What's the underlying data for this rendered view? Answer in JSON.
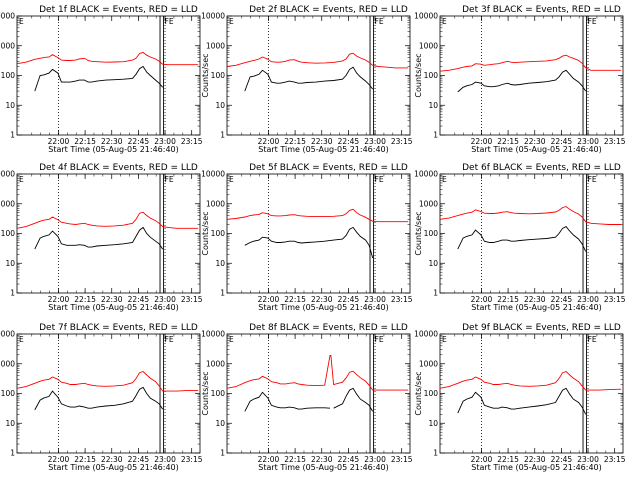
{
  "chart_data": {
    "type": "line",
    "layout": "3x3 grid",
    "shared": {
      "xlabel": "Start Time (05-Aug-05 21:46:40)",
      "ylabel": "Counts/sec",
      "yscale": "log",
      "ylim": [
        1,
        10000
      ],
      "yticks": [
        "1",
        "10",
        "100",
        "1000",
        "10000"
      ],
      "xlim": [
        -10,
        93
      ],
      "xticks": [
        {
          "x": 13.33,
          "label": "22:00"
        },
        {
          "x": 28.33,
          "label": "22:15"
        },
        {
          "x": 43.33,
          "label": "22:30"
        },
        {
          "x": 58.33,
          "label": "22:45"
        },
        {
          "x": 73.33,
          "label": "23:00"
        },
        {
          "x": 88.33,
          "label": "23:15"
        }
      ],
      "markers": {
        "dotted_x": [
          13.33,
          73.33
        ],
        "solid_x": [
          70.5,
          72.5
        ],
        "corner_label_left": "E",
        "corner_label_right": "FE"
      },
      "series_colors": {
        "events": "#000000",
        "lld": "#ff0000"
      }
    },
    "panels": [
      {
        "title": "Det 1f BLACK = Events, RED = LLD",
        "x": [
          -10,
          -5,
          0,
          3,
          5,
          8,
          10,
          13,
          15,
          18,
          20,
          23,
          25,
          28,
          30,
          32,
          35,
          40,
          45,
          50,
          55,
          57,
          59,
          61,
          63,
          65,
          68,
          70,
          72,
          75,
          80,
          85,
          92
        ],
        "events": [
          null,
          null,
          30,
          100,
          105,
          120,
          160,
          120,
          60,
          60,
          60,
          65,
          70,
          70,
          60,
          60,
          65,
          70,
          72,
          75,
          80,
          110,
          170,
          200,
          130,
          100,
          70,
          55,
          40,
          null,
          null,
          null,
          null
        ],
        "lld": [
          250,
          280,
          350,
          380,
          400,
          420,
          500,
          400,
          330,
          320,
          320,
          330,
          360,
          380,
          320,
          300,
          290,
          280,
          285,
          290,
          330,
          380,
          550,
          600,
          480,
          420,
          360,
          300,
          240,
          230,
          230,
          230,
          230
        ]
      },
      {
        "title": "Det 2f BLACK = Events, RED = LLD",
        "x": [
          -10,
          -5,
          0,
          3,
          5,
          8,
          10,
          13,
          15,
          18,
          20,
          23,
          25,
          28,
          30,
          32,
          35,
          40,
          45,
          50,
          55,
          57,
          59,
          61,
          63,
          65,
          68,
          70,
          72,
          75,
          80,
          85,
          92
        ],
        "events": [
          null,
          null,
          30,
          90,
          95,
          110,
          150,
          110,
          60,
          55,
          55,
          60,
          65,
          60,
          55,
          55,
          58,
          60,
          65,
          68,
          75,
          100,
          160,
          190,
          120,
          90,
          65,
          50,
          35,
          null,
          null,
          null,
          null
        ],
        "lld": [
          200,
          220,
          270,
          300,
          320,
          360,
          420,
          350,
          290,
          280,
          280,
          300,
          330,
          340,
          300,
          280,
          270,
          260,
          265,
          275,
          310,
          360,
          520,
          560,
          450,
          390,
          330,
          280,
          220,
          200,
          190,
          180,
          180
        ]
      },
      {
        "title": "Det 3f BLACK = Events, RED = LLD",
        "x": [
          -10,
          -5,
          0,
          3,
          5,
          8,
          10,
          13,
          15,
          18,
          20,
          23,
          25,
          28,
          30,
          32,
          35,
          40,
          45,
          50,
          55,
          57,
          59,
          61,
          63,
          65,
          68,
          70,
          72,
          75,
          80,
          85,
          92
        ],
        "events": [
          null,
          null,
          28,
          40,
          45,
          50,
          60,
          55,
          45,
          42,
          42,
          45,
          50,
          55,
          50,
          48,
          50,
          55,
          58,
          62,
          70,
          90,
          130,
          150,
          110,
          80,
          60,
          45,
          30,
          null,
          null,
          null,
          null
        ],
        "lld": [
          140,
          150,
          170,
          190,
          200,
          210,
          250,
          240,
          220,
          230,
          240,
          250,
          270,
          300,
          280,
          270,
          280,
          290,
          300,
          310,
          340,
          380,
          450,
          480,
          420,
          380,
          320,
          260,
          180,
          150,
          150,
          150,
          150
        ]
      },
      {
        "title": "Det 4f BLACK = Events, RED = LLD",
        "x": [
          -10,
          -5,
          0,
          3,
          5,
          8,
          10,
          13,
          15,
          18,
          20,
          23,
          25,
          28,
          30,
          32,
          35,
          40,
          45,
          50,
          55,
          57,
          59,
          61,
          63,
          65,
          68,
          70,
          72,
          75,
          80,
          85,
          92
        ],
        "events": [
          null,
          null,
          30,
          70,
          80,
          90,
          120,
          80,
          45,
          40,
          40,
          40,
          42,
          40,
          35,
          35,
          38,
          40,
          42,
          45,
          50,
          80,
          130,
          160,
          100,
          75,
          55,
          45,
          30,
          null,
          null,
          null,
          null
        ],
        "lld": [
          150,
          170,
          220,
          260,
          280,
          300,
          360,
          290,
          240,
          220,
          210,
          200,
          210,
          220,
          200,
          190,
          180,
          175,
          180,
          190,
          220,
          300,
          480,
          520,
          400,
          330,
          270,
          220,
          170,
          160,
          150,
          150,
          150
        ]
      },
      {
        "title": "Det 5f BLACK = Events, RED = LLD",
        "x": [
          -10,
          -5,
          0,
          3,
          5,
          8,
          10,
          13,
          15,
          18,
          20,
          23,
          25,
          28,
          30,
          32,
          35,
          40,
          45,
          50,
          55,
          57,
          59,
          61,
          63,
          65,
          68,
          70,
          72,
          75,
          80,
          85,
          92
        ],
        "events": [
          null,
          null,
          40,
          50,
          55,
          60,
          75,
          70,
          55,
          50,
          50,
          52,
          55,
          55,
          50,
          48,
          50,
          52,
          55,
          60,
          65,
          85,
          140,
          160,
          110,
          80,
          60,
          40,
          15,
          null,
          null,
          null,
          null
        ],
        "lld": [
          300,
          320,
          360,
          400,
          420,
          440,
          500,
          460,
          400,
          390,
          390,
          400,
          420,
          430,
          400,
          390,
          380,
          370,
          370,
          380,
          400,
          460,
          600,
          650,
          500,
          420,
          350,
          300,
          260,
          250,
          250,
          250,
          250
        ]
      },
      {
        "title": "Det 6f BLACK = Events, RED = LLD",
        "x": [
          -10,
          -5,
          0,
          3,
          5,
          8,
          10,
          13,
          15,
          18,
          20,
          23,
          25,
          28,
          30,
          32,
          35,
          40,
          45,
          50,
          55,
          57,
          59,
          61,
          63,
          65,
          68,
          70,
          72,
          75,
          80,
          85,
          92
        ],
        "events": [
          null,
          null,
          30,
          70,
          80,
          90,
          130,
          90,
          55,
          50,
          50,
          55,
          60,
          60,
          55,
          55,
          58,
          62,
          65,
          68,
          75,
          100,
          150,
          170,
          120,
          90,
          65,
          45,
          25,
          null,
          null,
          null,
          null
        ],
        "lld": [
          300,
          330,
          400,
          450,
          480,
          520,
          620,
          550,
          480,
          470,
          470,
          490,
          520,
          540,
          500,
          480,
          470,
          460,
          470,
          490,
          530,
          600,
          750,
          800,
          650,
          550,
          450,
          360,
          250,
          220,
          210,
          200,
          200
        ]
      },
      {
        "title": "Det 7f BLACK = Events, RED = LLD",
        "x": [
          -10,
          -5,
          0,
          3,
          5,
          8,
          10,
          13,
          15,
          18,
          20,
          23,
          25,
          28,
          30,
          32,
          35,
          40,
          45,
          50,
          55,
          57,
          59,
          61,
          63,
          65,
          68,
          70,
          72,
          75,
          80,
          85,
          92
        ],
        "events": [
          null,
          null,
          28,
          60,
          70,
          80,
          120,
          75,
          45,
          38,
          35,
          35,
          38,
          35,
          32,
          32,
          35,
          38,
          40,
          45,
          55,
          85,
          140,
          160,
          100,
          70,
          55,
          45,
          30,
          null,
          null,
          null,
          null
        ],
        "lld": [
          150,
          170,
          220,
          260,
          280,
          300,
          360,
          300,
          240,
          220,
          200,
          200,
          210,
          220,
          200,
          190,
          180,
          175,
          180,
          190,
          230,
          320,
          500,
          550,
          420,
          330,
          250,
          180,
          120,
          120,
          120,
          125,
          125
        ]
      },
      {
        "title": "Det 8f BLACK = Events, RED = LLD",
        "x": [
          -10,
          -5,
          0,
          3,
          5,
          8,
          10,
          13,
          15,
          18,
          20,
          23,
          25,
          28,
          30,
          32,
          35,
          40,
          45,
          48,
          48.5,
          50,
          55,
          57,
          59,
          61,
          63,
          65,
          68,
          70,
          72,
          75,
          80,
          85,
          92
        ],
        "events": [
          null,
          null,
          25,
          55,
          65,
          75,
          110,
          70,
          40,
          35,
          33,
          33,
          35,
          33,
          30,
          30,
          32,
          33,
          33,
          32,
          null,
          32,
          45,
          80,
          130,
          150,
          95,
          65,
          50,
          40,
          25,
          null,
          null,
          null,
          null
        ],
        "lld": [
          150,
          170,
          230,
          270,
          290,
          310,
          380,
          310,
          250,
          230,
          210,
          210,
          220,
          230,
          210,
          200,
          190,
          185,
          190,
          1900,
          1900,
          200,
          240,
          330,
          520,
          560,
          430,
          340,
          260,
          190,
          130,
          130,
          130,
          130,
          130
        ]
      },
      {
        "title": "Det 9f BLACK = Events, RED = LLD",
        "x": [
          -10,
          -5,
          0,
          3,
          5,
          8,
          10,
          13,
          15,
          18,
          20,
          23,
          25,
          28,
          30,
          32,
          35,
          40,
          45,
          50,
          55,
          57,
          59,
          61,
          63,
          65,
          68,
          70,
          72,
          75,
          80,
          85,
          92
        ],
        "events": [
          null,
          null,
          22,
          55,
          65,
          75,
          110,
          75,
          40,
          35,
          32,
          32,
          35,
          33,
          30,
          30,
          32,
          35,
          38,
          42,
          50,
          80,
          130,
          150,
          95,
          65,
          50,
          35,
          20,
          null,
          null,
          null,
          null
        ],
        "lld": [
          150,
          170,
          220,
          260,
          280,
          300,
          360,
          300,
          240,
          220,
          200,
          200,
          210,
          220,
          200,
          190,
          180,
          175,
          180,
          190,
          230,
          320,
          500,
          550,
          420,
          330,
          250,
          180,
          130,
          130,
          130,
          135,
          140
        ]
      }
    ]
  }
}
